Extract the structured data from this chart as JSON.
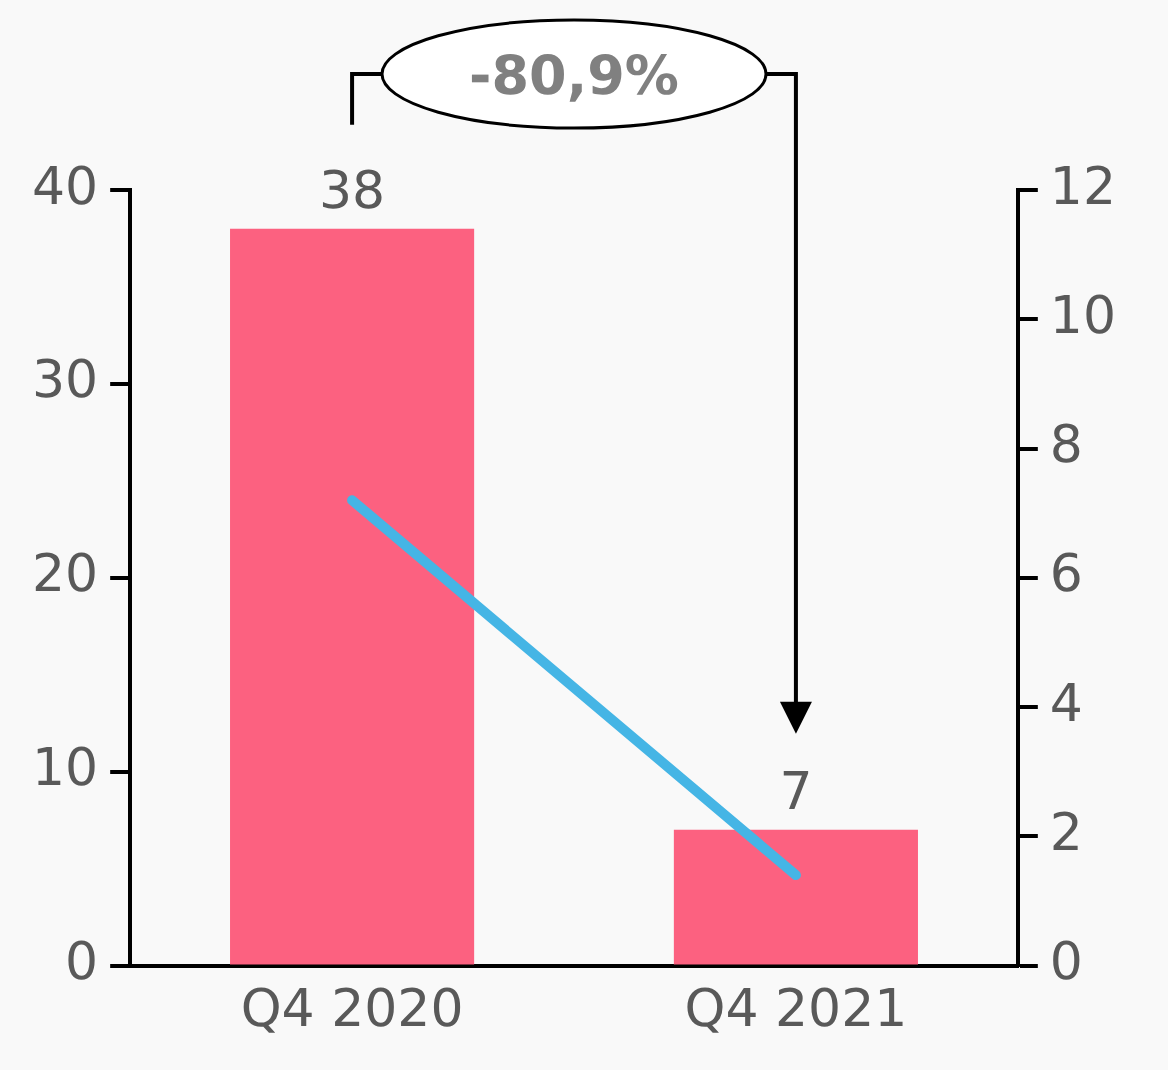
{
  "chart_data": {
    "type": "bar",
    "categories": [
      "Q4 2020",
      "Q4 2021"
    ],
    "series": [
      {
        "color": "#fc6180",
        "values": [
          38,
          7
        ],
        "value_labels": [
          "38",
          "7"
        ]
      },
      {
        "type": "line",
        "axis": "y2",
        "color": "#45b5e5",
        "values": [
          7.2,
          1.4
        ]
      }
    ],
    "ylim": [
      0,
      40
    ],
    "yticks": [
      0,
      10,
      20,
      30,
      40
    ],
    "y2lim": [
      0,
      12
    ],
    "y2ticks": [
      0,
      2,
      4,
      6,
      8,
      10,
      12
    ],
    "grid": false,
    "legend": false,
    "marker": "none",
    "annotations": [
      "-80,9%"
    ]
  }
}
